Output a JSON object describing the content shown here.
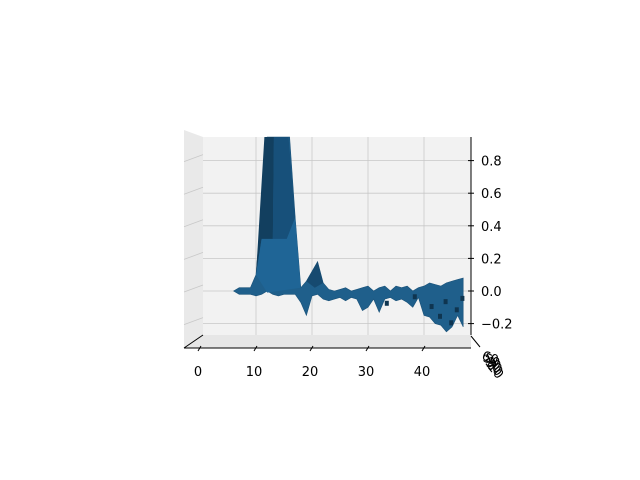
{
  "chart_data": {
    "type": "surface3d",
    "title": "",
    "xlabel": "",
    "ylabel": "",
    "zlabel": "",
    "view": "front-elevation (x axis horizontal, z axis vertical, y axis foreshortened)",
    "x_ticks": [
      "0",
      "10",
      "20",
      "30",
      "40"
    ],
    "y_ticks": [
      "10",
      "20",
      "30",
      "40",
      "50",
      "60"
    ],
    "z_ticks": [
      "−0.2",
      "0.0",
      "0.2",
      "0.4",
      "0.6",
      "0.8"
    ],
    "xlim": [
      -4,
      48
    ],
    "zlim": [
      -0.28,
      0.93
    ],
    "grid": true,
    "surface_color": "#1f5f8b",
    "surface_profile": {
      "x": [
        6,
        7,
        8,
        9,
        10,
        11,
        12,
        13,
        14,
        15,
        16,
        17,
        18,
        19,
        20,
        21,
        22,
        23,
        24,
        25,
        26,
        27,
        28,
        29,
        30,
        31,
        32,
        33,
        34,
        35,
        36,
        37,
        38,
        39,
        40,
        41,
        42,
        43,
        44,
        45,
        46,
        47
      ],
      "z_upper": [
        0.0,
        0.02,
        0.02,
        0.02,
        0.1,
        0.5,
        1.0,
        1.0,
        1.0,
        1.0,
        1.0,
        0.45,
        0.02,
        0.06,
        0.12,
        0.18,
        0.05,
        0.01,
        0.0,
        0.01,
        0.02,
        0.0,
        0.01,
        0.02,
        0.03,
        0.0,
        0.02,
        0.03,
        0.0,
        0.03,
        0.02,
        0.03,
        0.0,
        0.02,
        0.03,
        0.05,
        0.04,
        0.03,
        0.05,
        0.06,
        0.07,
        0.08
      ],
      "z_lower": [
        0.0,
        -0.02,
        -0.02,
        -0.02,
        -0.03,
        -0.02,
        0.0,
        -0.02,
        -0.03,
        -0.02,
        -0.02,
        -0.02,
        -0.07,
        -0.15,
        -0.03,
        -0.02,
        -0.05,
        -0.06,
        -0.05,
        -0.04,
        -0.06,
        -0.04,
        -0.05,
        -0.12,
        -0.1,
        -0.05,
        -0.13,
        -0.05,
        -0.04,
        -0.06,
        -0.05,
        -0.07,
        -0.1,
        -0.04,
        -0.15,
        -0.16,
        -0.2,
        -0.21,
        -0.25,
        -0.22,
        -0.15,
        -0.22
      ]
    }
  }
}
